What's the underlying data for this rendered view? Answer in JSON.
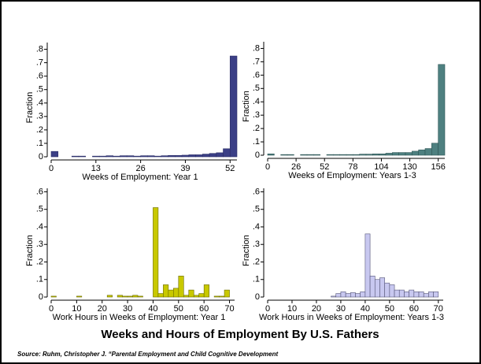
{
  "title": "Weeks and Hours of Employment By U.S. Fathers",
  "source": "Source:  Ruhm, Christopher J. “Parental Employment and Child Cognitive Development",
  "chart_data": [
    {
      "type": "histogram",
      "x_label": "Weeks of Employment: Year 1",
      "y_label": "Fraction",
      "bins": [
        0,
        2,
        4,
        6,
        8,
        10,
        12,
        14,
        16,
        18,
        20,
        22,
        24,
        26,
        28,
        30,
        32,
        34,
        36,
        38,
        40,
        42,
        44,
        46,
        48,
        50,
        52,
        54
      ],
      "values": [
        0.04,
        0,
        0,
        0.005,
        0.005,
        0,
        0.005,
        0.005,
        0.008,
        0.005,
        0.008,
        0.008,
        0.005,
        0.008,
        0.008,
        0.005,
        0.008,
        0.01,
        0.01,
        0.012,
        0.015,
        0.015,
        0.02,
        0.025,
        0.03,
        0.06,
        0.75
      ],
      "color": "#3b3f86",
      "edgecolor": "#2a2d66",
      "xlim": [
        0,
        54
      ],
      "xticks": [
        0,
        13,
        26,
        39,
        52
      ],
      "ylim": [
        0,
        0.85
      ],
      "yticks": [
        0,
        {
          "value": 0.1,
          "label": ".1"
        },
        {
          "value": 0.2,
          "label": ".2"
        },
        {
          "value": 0.3,
          "label": ".3"
        },
        {
          "value": 0.4,
          "label": ".4"
        },
        {
          "value": 0.5,
          "label": ".5"
        },
        {
          "value": 0.6,
          "label": ".6"
        },
        {
          "value": 0.7,
          "label": ".7"
        },
        {
          "value": 0.8,
          "label": ".8"
        }
      ]
    },
    {
      "type": "histogram",
      "x_label": "Weeks of Employment: Years 1-3",
      "y_label": "Fraction",
      "bins": [
        0,
        6,
        12,
        18,
        24,
        30,
        36,
        42,
        48,
        54,
        60,
        66,
        72,
        78,
        84,
        90,
        96,
        102,
        108,
        114,
        120,
        126,
        132,
        138,
        144,
        150,
        156,
        162
      ],
      "values": [
        0.01,
        0,
        0.005,
        0.005,
        0,
        0.005,
        0.005,
        0.005,
        0,
        0.005,
        0.005,
        0.005,
        0.005,
        0.005,
        0.008,
        0.008,
        0.01,
        0.01,
        0.015,
        0.02,
        0.02,
        0.02,
        0.03,
        0.04,
        0.05,
        0.09,
        0.68
      ],
      "color": "#4e8080",
      "edgecolor": "#2f5555",
      "xlim": [
        0,
        162
      ],
      "xticks": [
        0,
        26,
        52,
        78,
        104,
        130,
        156
      ],
      "ylim": [
        0,
        0.85
      ],
      "yticks": [
        0,
        {
          "value": 0.1,
          "label": ".1"
        },
        {
          "value": 0.2,
          "label": ".2"
        },
        {
          "value": 0.3,
          "label": ".3"
        },
        {
          "value": 0.4,
          "label": ".4"
        },
        {
          "value": 0.5,
          "label": ".5"
        },
        {
          "value": 0.6,
          "label": ".6"
        },
        {
          "value": 0.7,
          "label": ".7"
        },
        {
          "value": 0.8,
          "label": ".8"
        }
      ]
    },
    {
      "type": "histogram",
      "x_label": "Work Hours in Weeks of Employment: Year 1",
      "y_label": "Fraction",
      "bins": [
        0,
        2,
        4,
        6,
        8,
        10,
        12,
        14,
        16,
        18,
        20,
        22,
        24,
        26,
        28,
        30,
        32,
        34,
        36,
        38,
        40,
        42,
        44,
        46,
        48,
        50,
        52,
        54,
        56,
        58,
        60,
        62,
        64,
        66,
        68,
        70,
        72
      ],
      "values": [
        0.005,
        0,
        0,
        0,
        0,
        0.005,
        0,
        0,
        0,
        0,
        0,
        0.01,
        0,
        0.01,
        0.005,
        0.005,
        0.01,
        0.005,
        0,
        0,
        0.51,
        0.02,
        0.07,
        0.04,
        0.05,
        0.12,
        0.01,
        0.04,
        0.01,
        0.02,
        0.07,
        0,
        0.005,
        0.005,
        0.04,
        0
      ],
      "color": "#c8c800",
      "edgecolor": "#6b6b00",
      "xlim": [
        0,
        72
      ],
      "xticks": [
        0,
        10,
        20,
        30,
        40,
        50,
        60,
        70
      ],
      "ylim": [
        0,
        0.62
      ],
      "yticks": [
        0,
        {
          "value": 0.1,
          "label": ".1"
        },
        {
          "value": 0.2,
          "label": ".2"
        },
        {
          "value": 0.3,
          "label": ".3"
        },
        {
          "value": 0.4,
          "label": ".4"
        },
        {
          "value": 0.5,
          "label": ".5"
        },
        {
          "value": 0.6,
          "label": ".6"
        }
      ]
    },
    {
      "type": "histogram",
      "x_label": "Work Hours in Weeks of Employment: Years 1-3",
      "y_label": "Fraction",
      "bins": [
        0,
        2,
        4,
        6,
        8,
        10,
        12,
        14,
        16,
        18,
        20,
        22,
        24,
        26,
        28,
        30,
        32,
        34,
        36,
        38,
        40,
        42,
        44,
        46,
        48,
        50,
        52,
        54,
        56,
        58,
        60,
        62,
        64,
        66,
        68,
        70,
        72
      ],
      "values": [
        0,
        0,
        0,
        0,
        0,
        0,
        0,
        0,
        0,
        0,
        0,
        0,
        0,
        0.005,
        0.02,
        0.03,
        0.02,
        0.025,
        0.02,
        0.03,
        0.36,
        0.12,
        0.1,
        0.11,
        0.08,
        0.07,
        0.04,
        0.04,
        0.03,
        0.04,
        0.03,
        0.03,
        0.02,
        0.03,
        0.03,
        0
      ],
      "color": "#c8c8f0",
      "edgecolor": "#555577",
      "xlim": [
        0,
        72
      ],
      "xticks": [
        0,
        10,
        20,
        30,
        40,
        50,
        60,
        70
      ],
      "ylim": [
        0,
        0.62
      ],
      "yticks": [
        0,
        {
          "value": 0.1,
          "label": ".1"
        },
        {
          "value": 0.2,
          "label": ".2"
        },
        {
          "value": 0.3,
          "label": ".3"
        },
        {
          "value": 0.4,
          "label": ".4"
        },
        {
          "value": 0.5,
          "label": ".5"
        },
        {
          "value": 0.6,
          "label": ".6"
        }
      ]
    }
  ]
}
